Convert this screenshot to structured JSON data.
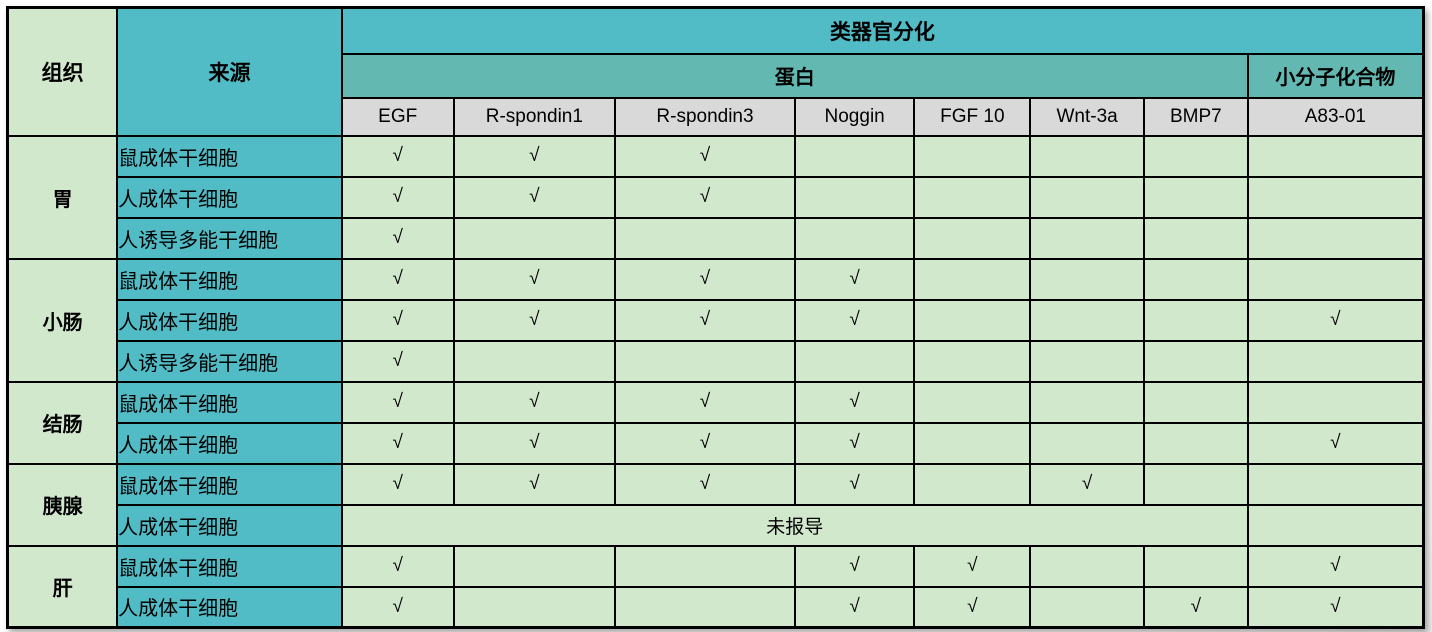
{
  "table": {
    "tissue_header": "组织",
    "source_header": "来源",
    "top_header": "类器官分化",
    "protein_header": "蛋白",
    "small_molecule_header": "小分子化合物",
    "factor_columns": [
      "EGF",
      "R-spondin1",
      "R-spondin3",
      "Noggin",
      "FGF 10",
      "Wnt-3a",
      "BMP7",
      "A83-01"
    ],
    "check_symbol": "√",
    "not_reported_label": "未报导",
    "groups": [
      {
        "tissue": "胃",
        "rows": [
          {
            "source": "鼠成体干细胞",
            "checks": [
              1,
              1,
              1,
              0,
              0,
              0,
              0,
              0
            ]
          },
          {
            "source": "人成体干细胞",
            "checks": [
              1,
              1,
              1,
              0,
              0,
              0,
              0,
              0
            ]
          },
          {
            "source": "人诱导多能干细胞",
            "checks": [
              1,
              0,
              0,
              0,
              0,
              0,
              0,
              0
            ]
          }
        ]
      },
      {
        "tissue": "小肠",
        "rows": [
          {
            "source": "鼠成体干细胞",
            "checks": [
              1,
              1,
              1,
              1,
              0,
              0,
              0,
              0
            ]
          },
          {
            "source": "人成体干细胞",
            "checks": [
              1,
              1,
              1,
              1,
              0,
              0,
              0,
              1
            ]
          },
          {
            "source": "人诱导多能干细胞",
            "checks": [
              1,
              0,
              0,
              0,
              0,
              0,
              0,
              0
            ]
          }
        ]
      },
      {
        "tissue": "结肠",
        "rows": [
          {
            "source": "鼠成体干细胞",
            "checks": [
              1,
              1,
              1,
              1,
              0,
              0,
              0,
              0
            ]
          },
          {
            "source": "人成体干细胞",
            "checks": [
              1,
              1,
              1,
              1,
              0,
              0,
              0,
              1
            ]
          }
        ]
      },
      {
        "tissue": "胰腺",
        "rows": [
          {
            "source": "鼠成体干细胞",
            "checks": [
              1,
              1,
              1,
              1,
              0,
              1,
              0,
              0
            ]
          },
          {
            "source": "人成体干细胞",
            "not_reported": true
          }
        ]
      },
      {
        "tissue": "肝",
        "rows": [
          {
            "source": "鼠成体干细胞",
            "checks": [
              1,
              0,
              0,
              1,
              1,
              0,
              0,
              1
            ]
          },
          {
            "source": "人成体干细胞",
            "checks": [
              1,
              0,
              0,
              1,
              1,
              0,
              1,
              1
            ]
          }
        ]
      }
    ],
    "colors": {
      "header_teal": "#52BCC6",
      "sub_header_teal": "#63B9B2",
      "factor_gray": "#D9D9D9",
      "cell_green": "#D2E8CD",
      "border": "#000000"
    }
  }
}
